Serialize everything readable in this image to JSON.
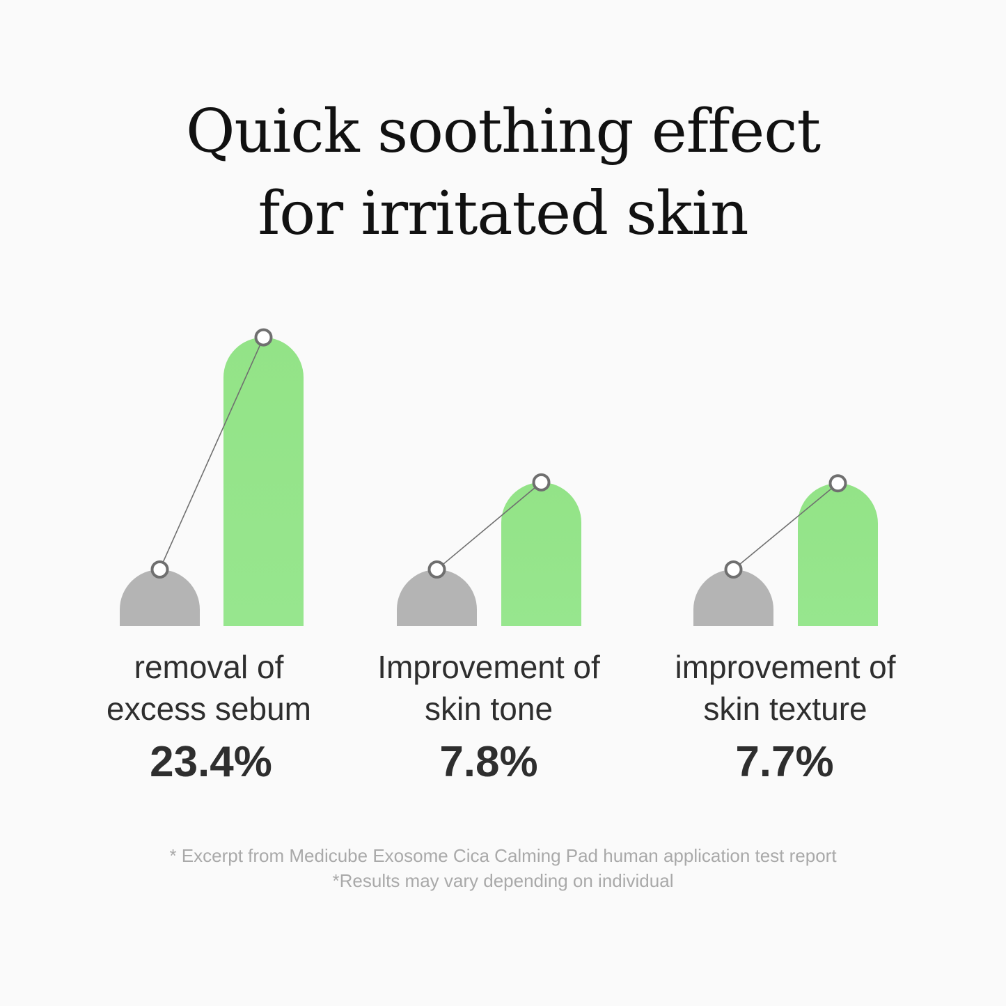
{
  "title": {
    "line1": "Quick soothing effect",
    "line2": "for irritated skin"
  },
  "chart_data": {
    "type": "bar",
    "categories": [
      {
        "line1": "removal of",
        "line2": "excess sebum"
      },
      {
        "line1": "Improvement of",
        "line2": "skin tone"
      },
      {
        "line1": "improvement of",
        "line2": "skin texture"
      }
    ],
    "values": [
      "23.4%",
      "7.8%",
      "7.7%"
    ],
    "improvement_percent": [
      23.4,
      7.8,
      7.7
    ],
    "bar_pairs": [
      "before",
      "after"
    ],
    "grid": false,
    "legend": "none"
  },
  "colors": {
    "before_bar": "#b4b4b4",
    "after_bar": "#93e387",
    "marker_stroke": "#6f6f6f",
    "connector": "#6f6f6f"
  },
  "footnotes": {
    "line1": "* Excerpt from Medicube Exosome Cica Calming Pad human application test report",
    "line2": "*Results may vary depending on individual"
  }
}
